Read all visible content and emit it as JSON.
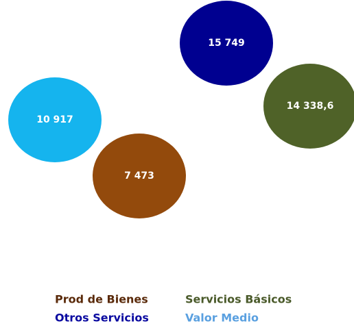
{
  "chart_data": {
    "type": "bubble",
    "series": [
      {
        "name": "Prod de Bienes",
        "color": "#934a0c",
        "values": [
          7473
        ],
        "value_labels": [
          "7 473"
        ]
      },
      {
        "name": "Servicios Básicos",
        "color": "#4f6228",
        "values": [
          14338.6
        ],
        "value_labels": [
          "14 338,6"
        ]
      },
      {
        "name": "Otros Servicios",
        "color": "#000090",
        "values": [
          15749
        ],
        "value_labels": [
          "15 749"
        ]
      },
      {
        "name": "Valor Medio",
        "color": "#15b4ee",
        "values": [
          10917
        ],
        "value_labels": [
          "10 917"
        ]
      }
    ],
    "legend": "bottom"
  }
}
